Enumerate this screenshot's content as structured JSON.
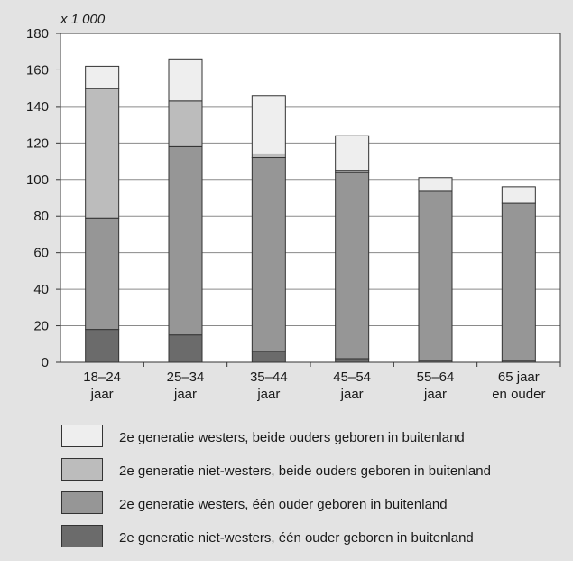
{
  "chart_data": {
    "type": "bar",
    "stacked": true,
    "unit_label": "x 1 000",
    "categories": [
      [
        "18–24",
        "jaar"
      ],
      [
        "25–34",
        "jaar"
      ],
      [
        "35–44",
        "jaar"
      ],
      [
        "45–54",
        "jaar"
      ],
      [
        "55–64",
        "jaar"
      ],
      [
        "65 jaar",
        "en ouder"
      ]
    ],
    "ylim": [
      0,
      180
    ],
    "yticks": [
      0,
      20,
      40,
      60,
      80,
      100,
      120,
      140,
      160,
      180
    ],
    "grid": true,
    "series": [
      {
        "name": "2e generatie niet-westers, één ouder geboren in buitenland",
        "color": "#6b6b6b",
        "values": [
          18,
          15,
          6,
          2,
          1,
          1
        ]
      },
      {
        "name": "2e generatie westers, één ouder geboren in buitenland",
        "color": "#969696",
        "values": [
          61,
          103,
          106,
          102,
          93,
          86
        ]
      },
      {
        "name": "2e generatie niet-westers, beide ouders geboren in buitenland",
        "color": "#bcbcbc",
        "values": [
          71,
          25,
          2,
          1,
          0,
          0
        ]
      },
      {
        "name": "2e generatie westers, beide ouders geboren in buitenland",
        "color": "#eeeeee",
        "values": [
          12,
          23,
          32,
          19,
          7,
          9
        ]
      }
    ],
    "legend_order": [
      3,
      2,
      1,
      0
    ]
  }
}
